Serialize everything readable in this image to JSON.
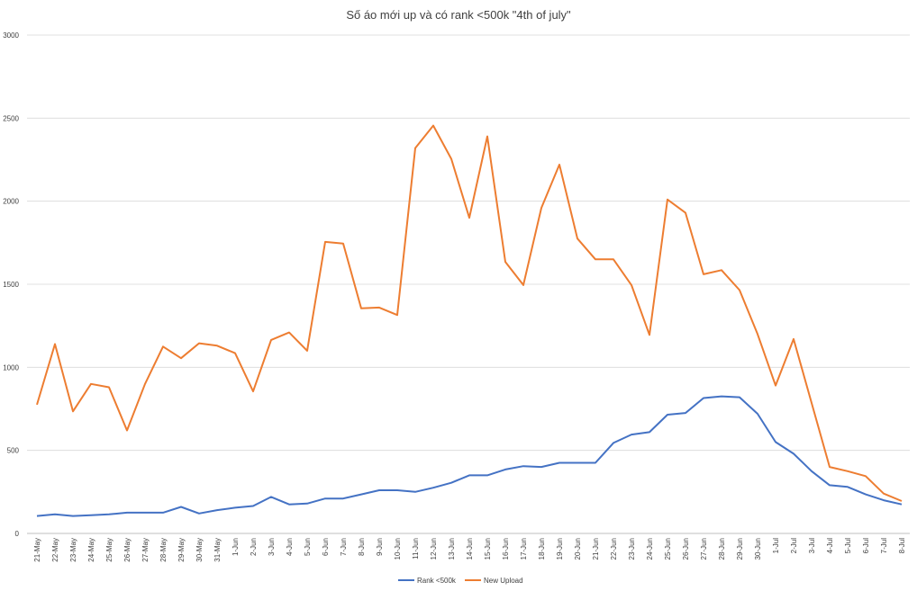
{
  "chart_data": {
    "type": "line",
    "title": "Số áo mới up và có rank <500k \"4th of july\"",
    "xlabel": "",
    "ylabel": "",
    "ylim": [
      0,
      3000
    ],
    "yticks": [
      0,
      500,
      1000,
      1500,
      2000,
      2500,
      3000
    ],
    "grid": true,
    "legend_position": "bottom",
    "categories": [
      "21-May",
      "22-May",
      "23-May",
      "24-May",
      "25-May",
      "26-May",
      "27-May",
      "28-May",
      "29-May",
      "30-May",
      "31-May",
      "1-Jun",
      "2-Jun",
      "3-Jun",
      "4-Jun",
      "5-Jun",
      "6-Jun",
      "7-Jun",
      "8-Jun",
      "9-Jun",
      "10-Jun",
      "11-Jun",
      "12-Jun",
      "13-Jun",
      "14-Jun",
      "15-Jun",
      "16-Jun",
      "17-Jun",
      "18-Jun",
      "19-Jun",
      "20-Jun",
      "21-Jun",
      "22-Jun",
      "23-Jun",
      "24-Jun",
      "25-Jun",
      "26-Jun",
      "27-Jun",
      "28-Jun",
      "29-Jun",
      "30-Jun",
      "1-Jul",
      "2-Jul",
      "3-Jul",
      "4-Jul",
      "5-Jul",
      "6-Jul",
      "7-Jul",
      "8-Jul"
    ],
    "series": [
      {
        "name": "Rank <500k",
        "color": "#4472c4",
        "values": [
          105,
          115,
          105,
          110,
          115,
          125,
          125,
          125,
          160,
          120,
          140,
          155,
          165,
          220,
          175,
          180,
          210,
          210,
          235,
          260,
          260,
          250,
          275,
          305,
          350,
          350,
          385,
          405,
          400,
          425,
          425,
          425,
          545,
          595,
          610,
          715,
          725,
          815,
          825,
          820,
          720,
          550,
          480,
          375,
          290,
          280,
          235,
          200,
          175
        ]
      },
      {
        "name": "New Upload",
        "color": "#ed7d31",
        "values": [
          775,
          1140,
          735,
          900,
          880,
          620,
          900,
          1125,
          1055,
          1145,
          1130,
          1085,
          855,
          1165,
          1210,
          1100,
          1755,
          1745,
          1355,
          1360,
          1315,
          2320,
          2455,
          2255,
          1900,
          2390,
          1635,
          1495,
          1960,
          2220,
          1775,
          1650,
          1650,
          1495,
          1195,
          2010,
          1930,
          1560,
          1585,
          1465,
          1200,
          890,
          1170,
          785,
          400,
          375,
          345,
          240,
          195
        ]
      }
    ]
  }
}
